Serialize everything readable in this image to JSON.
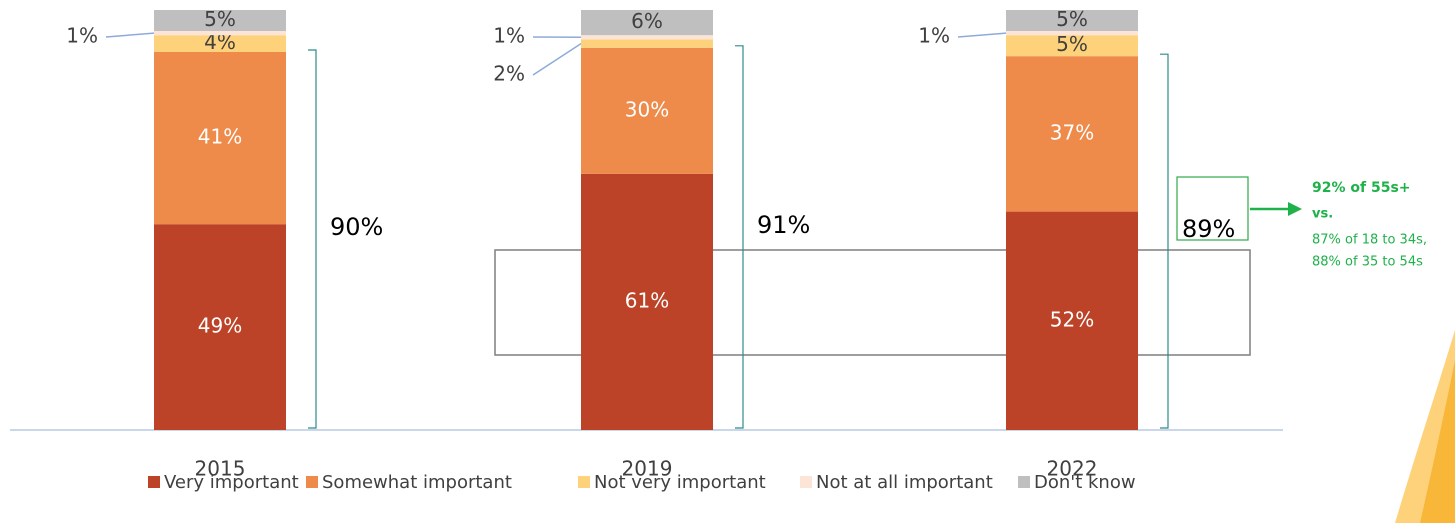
{
  "chart_data": {
    "type": "stacked-bar",
    "categories": [
      "2015",
      "2019",
      "2022"
    ],
    "series": [
      {
        "name": "Very important",
        "color": "#bc4328",
        "values": [
          49,
          61,
          52
        ],
        "value_labels": [
          "49%",
          "61%",
          "52%"
        ]
      },
      {
        "name": "Somewhat important",
        "color": "#ee8a4a",
        "values": [
          41,
          30,
          37
        ],
        "value_labels": [
          "41%",
          "30%",
          "37%"
        ]
      },
      {
        "name": "Not very important",
        "color": "#fdd27a",
        "values": [
          4,
          2,
          5
        ],
        "value_labels": [
          "4%",
          "2%",
          "5%"
        ]
      },
      {
        "name": "Not at all important",
        "color": "#fce4d6",
        "values": [
          1,
          1,
          1
        ],
        "value_labels": [
          "1%",
          "1%",
          "1%"
        ]
      },
      {
        "name": "Don't know",
        "color": "#bfbfbf",
        "values": [
          5,
          6,
          5
        ],
        "value_labels": [
          "5%",
          "6%",
          "5%"
        ]
      }
    ],
    "brackets": [
      {
        "value": 90,
        "label": "90%"
      },
      {
        "value": 91,
        "label": "91%"
      },
      {
        "value": 89,
        "label": "89%"
      }
    ],
    "callout": {
      "headline": "92% of 55s+",
      "vs": "vs.",
      "lines": [
        "87% of 18 to 34s,",
        "88% of  35 to 54s"
      ]
    },
    "legend": "bottom"
  }
}
